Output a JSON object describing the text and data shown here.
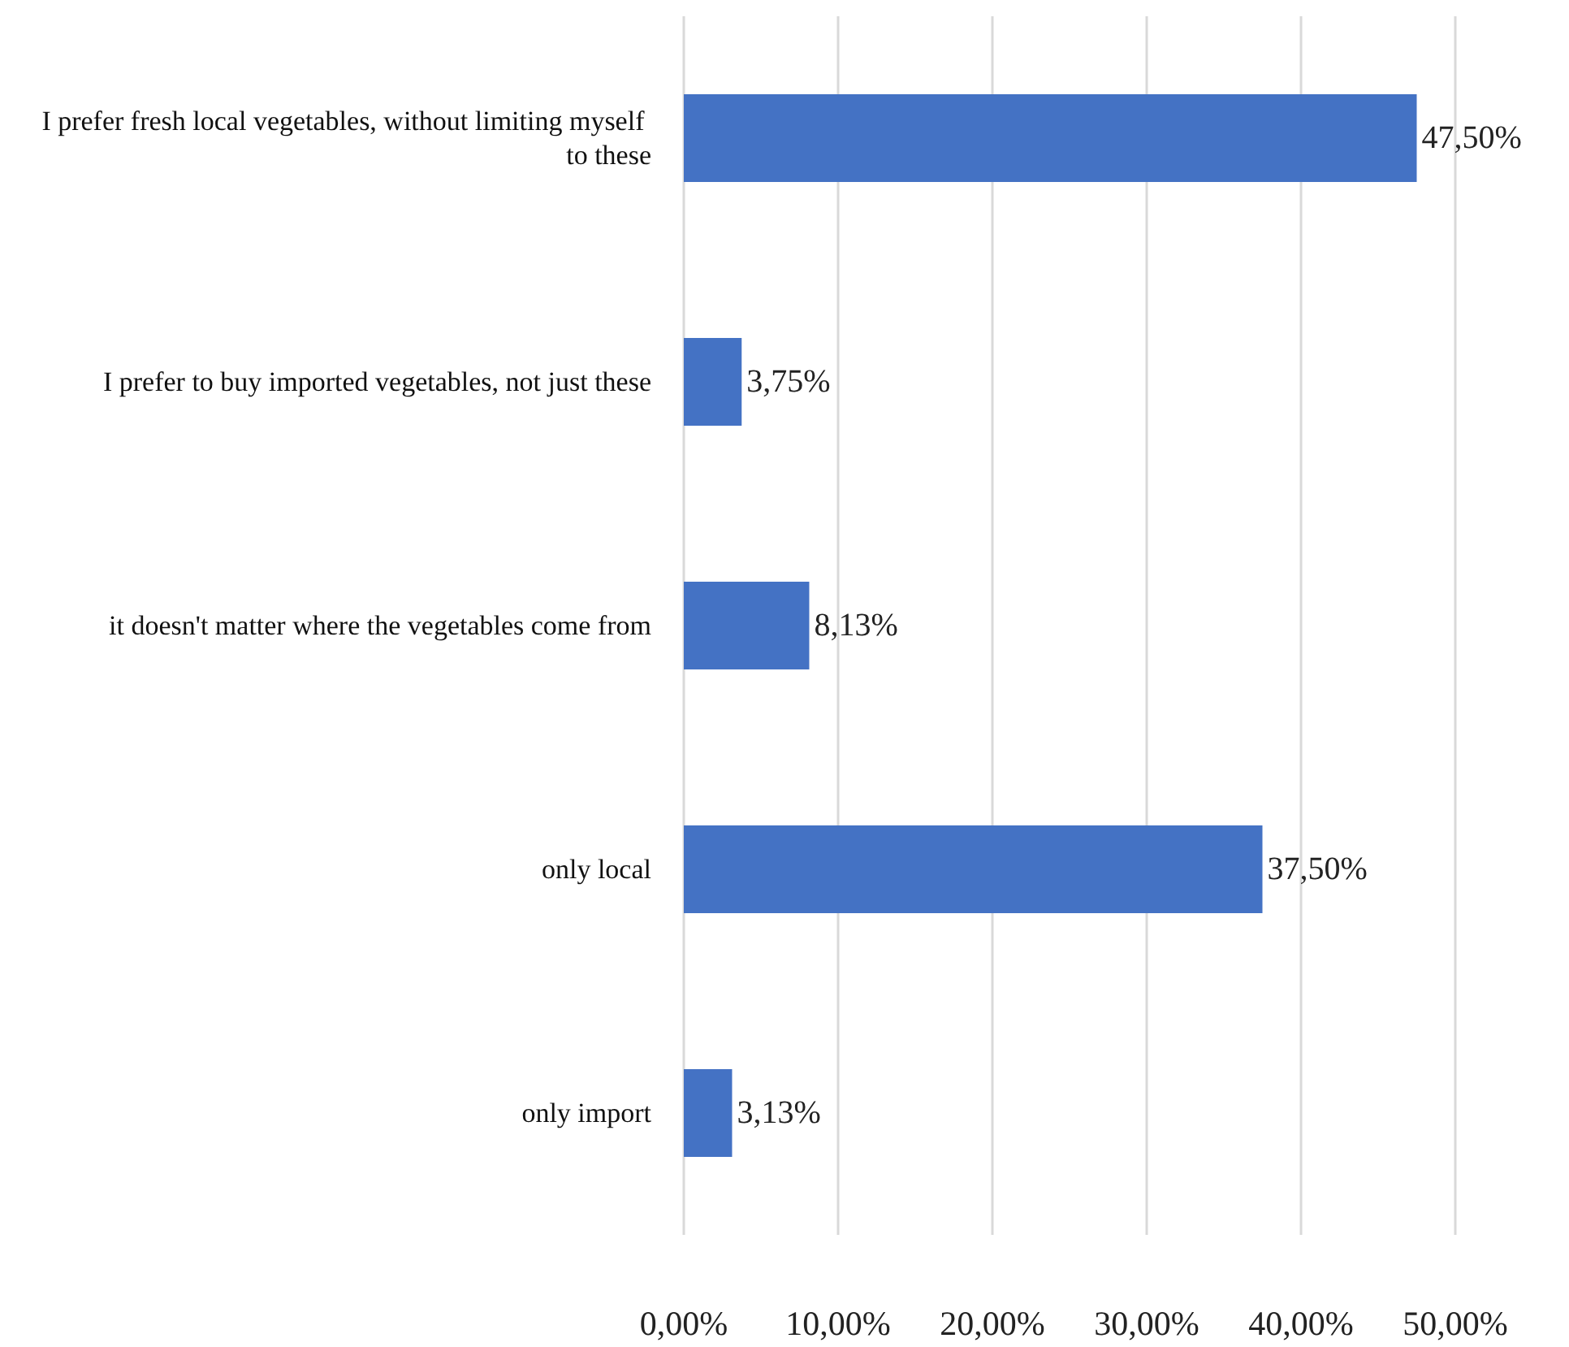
{
  "chart_data": {
    "type": "bar",
    "orientation": "horizontal",
    "categories": [
      "I prefer fresh local vegetables, without limiting myself to these",
      "I prefer to buy imported vegetables, not just these",
      "it doesn't matter where the vegetables come from",
      "only local",
      "only import"
    ],
    "values": [
      47.5,
      3.75,
      8.13,
      37.5,
      3.13
    ],
    "value_labels": [
      "47,50%",
      "3,75%",
      "8,13%",
      "37,50%",
      "3,13%"
    ],
    "color": "#4472c4",
    "xlim": [
      0,
      50
    ],
    "xticks": [
      {
        "value": 0,
        "label": "0,00%"
      },
      {
        "value": 10,
        "label": "10,00%"
      },
      {
        "value": 20,
        "label": "20,00%"
      },
      {
        "value": 30,
        "label": "30,00%"
      },
      {
        "value": 40,
        "label": "40,00%"
      },
      {
        "value": 50,
        "label": "50,00%"
      }
    ],
    "grid": "x"
  }
}
